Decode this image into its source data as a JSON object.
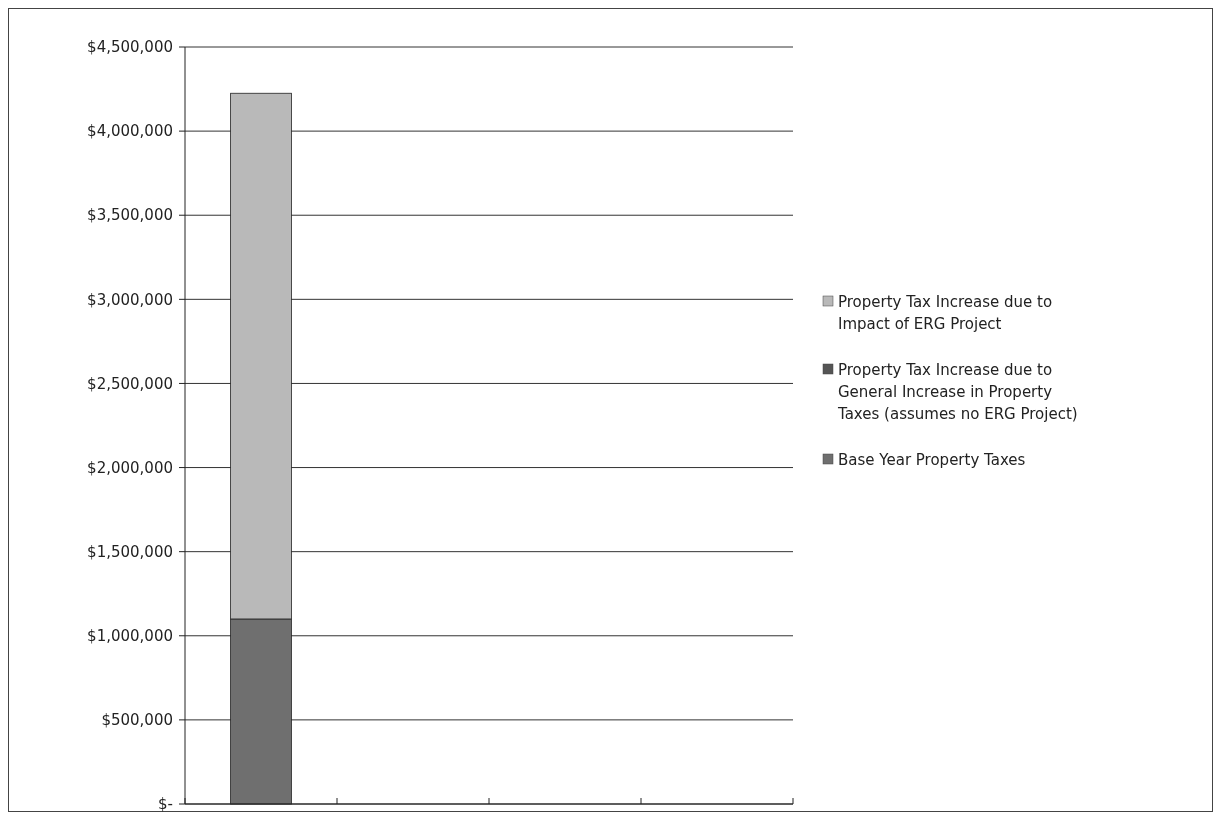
{
  "chart_data": {
    "type": "bar",
    "stacked": true,
    "categories": [
      null,
      null,
      null,
      null
    ],
    "series": [
      {
        "name": "Base Year Property Taxes",
        "color": "#6f6f6f",
        "values": [
          1100000,
          null,
          null,
          null
        ]
      },
      {
        "name": "Property Tax Increase due to General Increase in Property Taxes (assumes no ERG Project)",
        "color": "#555555",
        "values": [
          0,
          null,
          null,
          null
        ]
      },
      {
        "name": "Property Tax Increase due to Impact of ERG Project",
        "color": "#b9b9b9",
        "values": [
          3125000,
          null,
          null,
          null
        ]
      }
    ],
    "ylim": [
      0,
      4500000
    ],
    "yticks": [
      {
        "value": 0,
        "label": "$-"
      },
      {
        "value": 500000,
        "label": "$500,000"
      },
      {
        "value": 1000000,
        "label": "$1,000,000"
      },
      {
        "value": 1500000,
        "label": "$1,500,000"
      },
      {
        "value": 2000000,
        "label": "$2,000,000"
      },
      {
        "value": 2500000,
        "label": "$2,500,000"
      },
      {
        "value": 3000000,
        "label": "$3,000,000"
      },
      {
        "value": 3500000,
        "label": "$3,500,000"
      },
      {
        "value": 4000000,
        "label": "$4,000,000"
      },
      {
        "value": 4500000,
        "label": "$4,500,000"
      }
    ],
    "grid": "y",
    "legend": "right"
  }
}
